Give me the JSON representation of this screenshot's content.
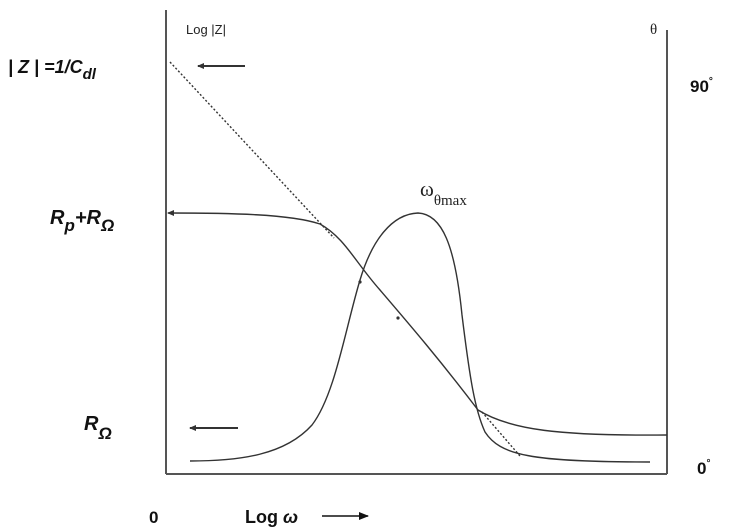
{
  "left_axis": {
    "title": "Log |Z|"
  },
  "right_axis": {
    "title": "θ",
    "top": "90",
    "bottom": "0"
  },
  "degree_mark": "°",
  "x_axis": {
    "origin": "0",
    "label": "Log",
    "symbol": "ω"
  },
  "labels": {
    "capacitance": {
      "prefix": "| Z | =1/C",
      "sub": "dl"
    },
    "rp_plus_romega": {
      "r1": "R",
      "s1": "p",
      "plus": "+R",
      "s2": "Ω"
    },
    "romega": {
      "r": "R",
      "s": "Ω"
    },
    "peak": {
      "main": "ω",
      "sub": "θmax"
    }
  },
  "colors": {
    "curve": "#333333",
    "axis": "#555555"
  }
}
